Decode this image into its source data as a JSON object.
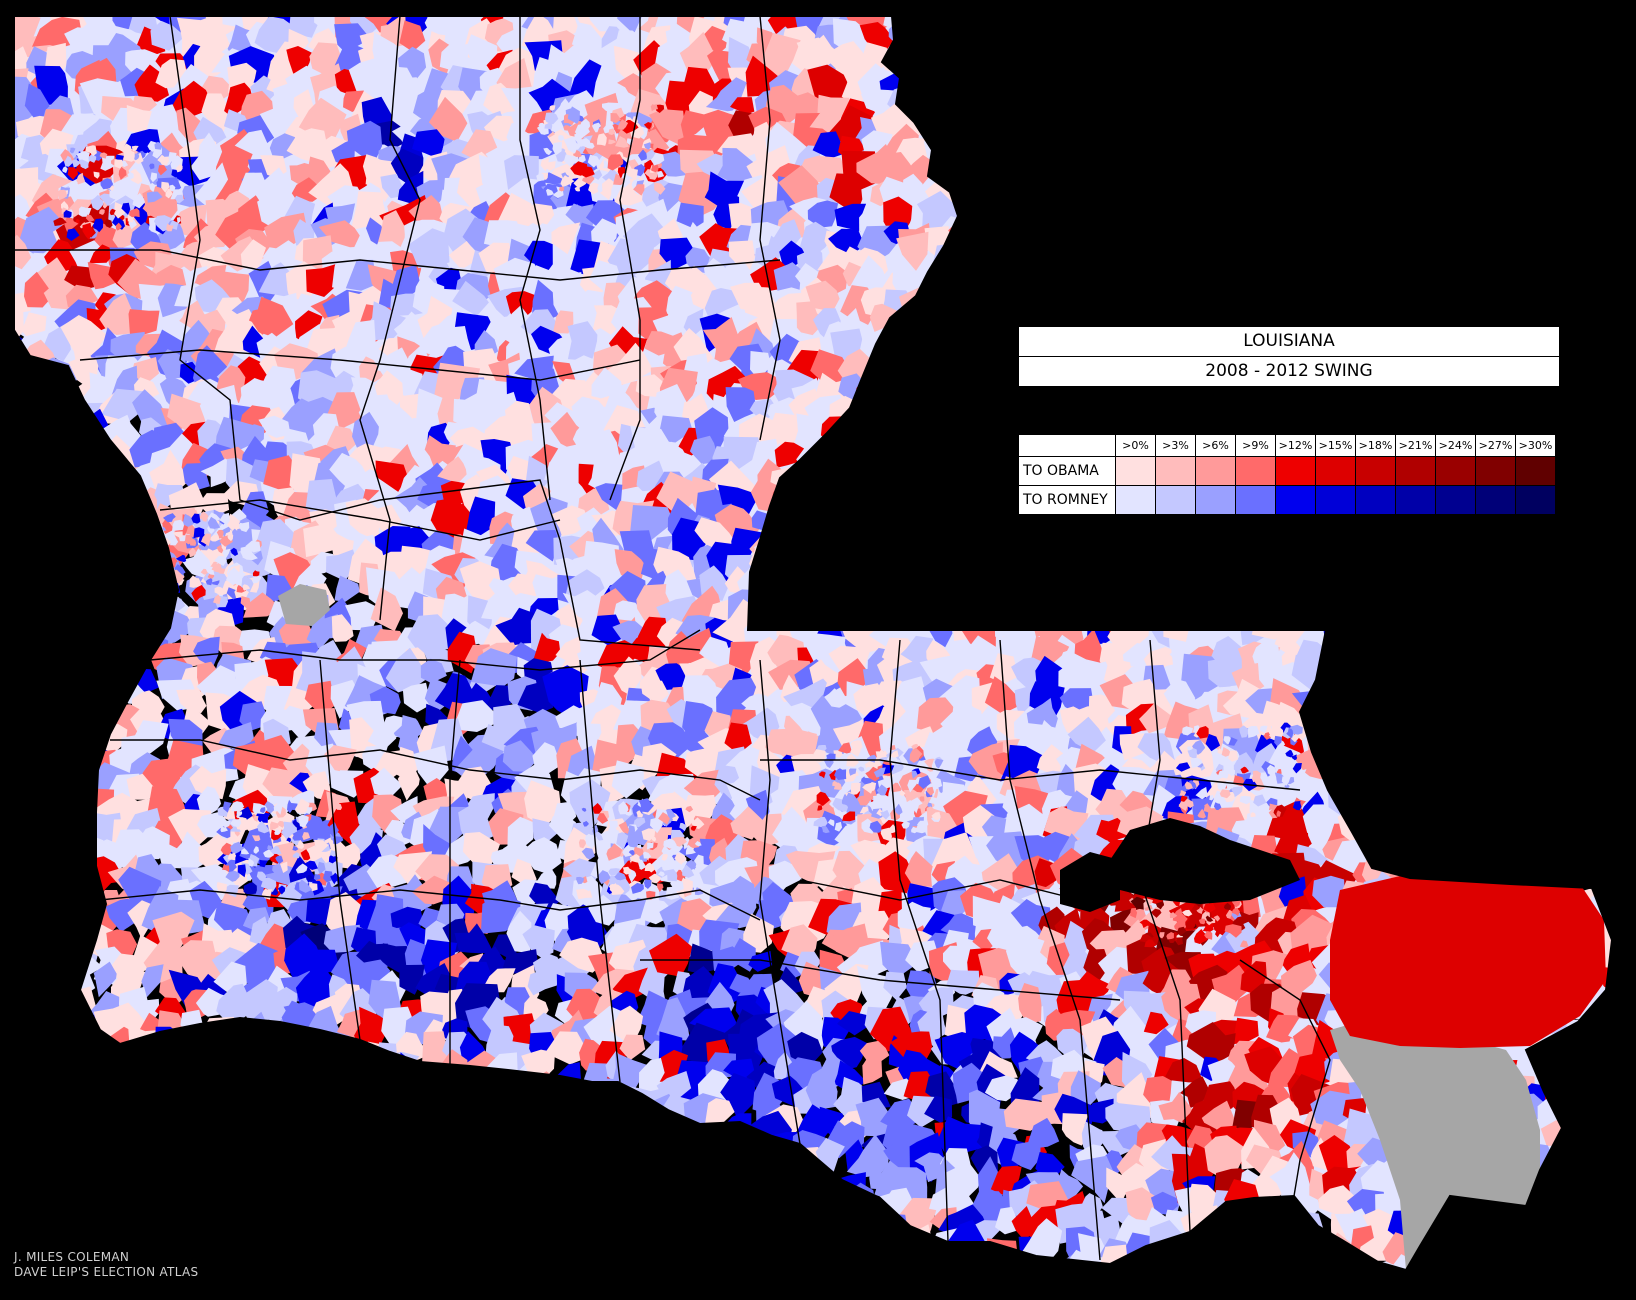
{
  "title": "LOUISIANA",
  "subtitle": "2008 - 2012 SWING",
  "legend": {
    "thresholds": [
      ">0%",
      ">3%",
      ">6%",
      ">9%",
      ">12%",
      ">15%",
      ">18%",
      ">21%",
      ">24%",
      ">27%",
      ">30%"
    ],
    "rows": [
      {
        "label": "TO OBAMA",
        "colors": [
          "#ffe0e0",
          "#ffbcbc",
          "#ff9a9a",
          "#ff6a6a",
          "#ee0000",
          "#dd0000",
          "#c80000",
          "#b00000",
          "#9a0000",
          "#800000",
          "#600000"
        ]
      },
      {
        "label": "TO ROMNEY",
        "colors": [
          "#e2e4ff",
          "#c4c8ff",
          "#9aa0ff",
          "#6a70ff",
          "#0000ee",
          "#0000d8",
          "#0000c0",
          "#0000a8",
          "#000090",
          "#000078",
          "#000060"
        ]
      }
    ]
  },
  "colors": {
    "no_data": "#a6a6a6",
    "background": "#000000",
    "boundary": "#000000"
  },
  "credits": {
    "author": "J. MILES COLEMAN",
    "source": "DAVE LEIP'S ELECTION ATLAS"
  }
}
